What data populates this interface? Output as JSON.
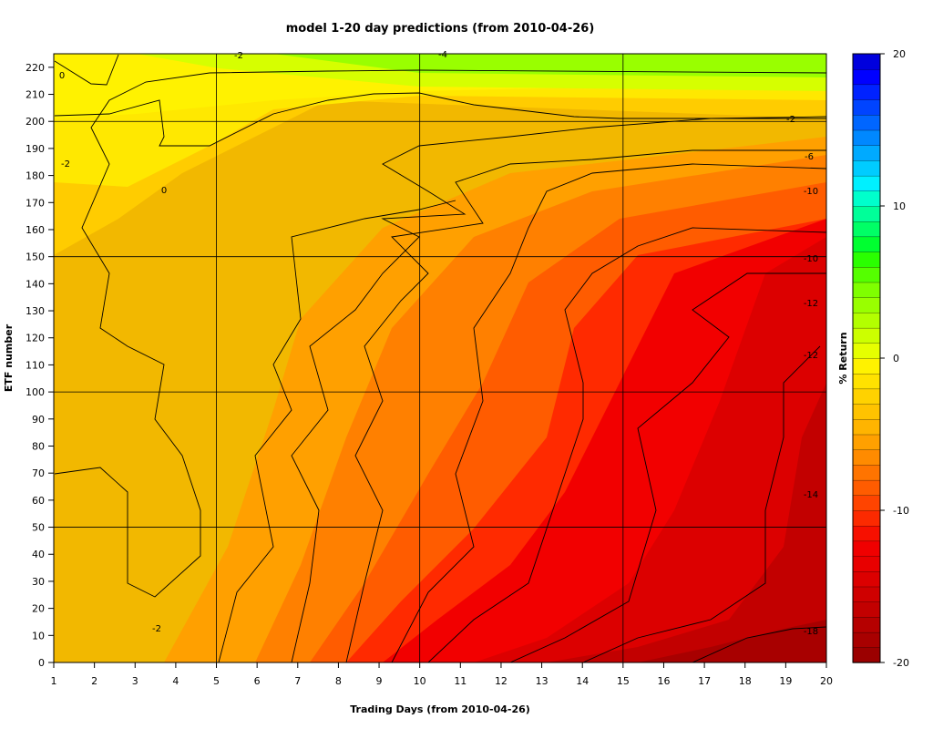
{
  "chart_data": {
    "type": "heatmap",
    "title": "model 1-20 day predictions (from 2010-04-26)",
    "xlabel": "Trading Days (from 2010-04-26)",
    "ylabel": "ETF number",
    "colorbar_label": "% Return",
    "xlim": [
      1,
      20
    ],
    "ylim": [
      0,
      225
    ],
    "x_ticks": [
      "1",
      "2",
      "3",
      "4",
      "5",
      "6",
      "7",
      "8",
      "9",
      "10",
      "11",
      "12",
      "13",
      "14",
      "15",
      "16",
      "17",
      "18",
      "19",
      "20"
    ],
    "y_ticks": [
      "0",
      "10",
      "20",
      "30",
      "40",
      "50",
      "60",
      "70",
      "80",
      "90",
      "100",
      "110",
      "120",
      "130",
      "140",
      "150",
      "160",
      "170",
      "180",
      "190",
      "200",
      "210",
      "220"
    ],
    "grid_x": [
      5,
      10,
      15
    ],
    "grid_y": [
      50,
      100,
      150,
      200
    ],
    "colorbar": {
      "range": [
        -20,
        20
      ],
      "step": 1,
      "ticks": [
        "-20",
        "-10",
        "0",
        "10",
        "20"
      ],
      "colors": [
        "#9b0000",
        "#a80000",
        "#b50000",
        "#c20000",
        "#cf0000",
        "#dc0000",
        "#e80000",
        "#f00000",
        "#f71000",
        "#fc2a00",
        "#ff4400",
        "#ff5c00",
        "#ff7400",
        "#ff8b00",
        "#ffa000",
        "#ffb400",
        "#ffc300",
        "#ffd200",
        "#ffe200",
        "#fff200",
        "#e6ff00",
        "#ccff00",
        "#b3ff00",
        "#99ff00",
        "#7fff00",
        "#55ff00",
        "#2aff00",
        "#00ff30",
        "#00ff66",
        "#00ff99",
        "#00ffcc",
        "#00f0ff",
        "#00ccff",
        "#00aaff",
        "#0088ff",
        "#0066ff",
        "#0044ff",
        "#0022ff",
        "#0000ff",
        "#0000dd"
      ]
    },
    "contour_labels": [
      "0",
      "-2",
      "-4",
      "-6",
      "-10",
      "-12",
      "-14",
      "-18"
    ]
  }
}
